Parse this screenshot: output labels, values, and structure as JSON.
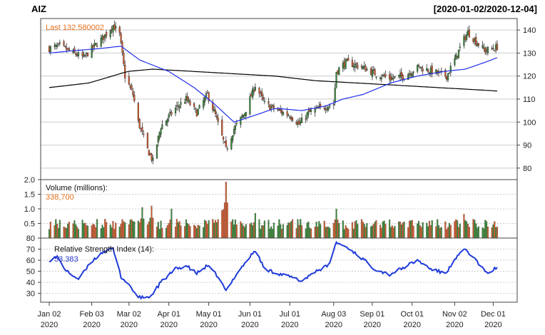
{
  "title": "AIZ",
  "date_range": "[2020-01-02/2020-12-04]",
  "colors": {
    "up_candle": "#3a8a3a",
    "down_candle": "#d35a2e",
    "wick": "#333333",
    "sma_fast": "#1f2eea",
    "sma_slow": "#000000",
    "rsi": "#1f3ad9",
    "last_label": "#e8701a",
    "grid": "#cccccc"
  },
  "chart_data": [
    {
      "type": "candlestick",
      "panel": "price",
      "annotation": "Last 132.580002",
      "ylim": [
        75,
        145
      ],
      "yticks": [
        80,
        90,
        100,
        110,
        120,
        130,
        140
      ],
      "grid": true,
      "close_keypoints": [
        {
          "x": "2020-01-02",
          "y": 132
        },
        {
          "x": "2020-01-10",
          "y": 133
        },
        {
          "x": "2020-01-20",
          "y": 130
        },
        {
          "x": "2020-01-28",
          "y": 128
        },
        {
          "x": "2020-02-05",
          "y": 133
        },
        {
          "x": "2020-02-12",
          "y": 137
        },
        {
          "x": "2020-02-19",
          "y": 142
        },
        {
          "x": "2020-02-24",
          "y": 138
        },
        {
          "x": "2020-02-28",
          "y": 120
        },
        {
          "x": "2020-03-05",
          "y": 112
        },
        {
          "x": "2020-03-09",
          "y": 100
        },
        {
          "x": "2020-03-16",
          "y": 88
        },
        {
          "x": "2020-03-20",
          "y": 83
        },
        {
          "x": "2020-03-26",
          "y": 98
        },
        {
          "x": "2020-04-06",
          "y": 106
        },
        {
          "x": "2020-04-14",
          "y": 110
        },
        {
          "x": "2020-04-22",
          "y": 104
        },
        {
          "x": "2020-04-30",
          "y": 112
        },
        {
          "x": "2020-05-06",
          "y": 103
        },
        {
          "x": "2020-05-14",
          "y": 88
        },
        {
          "x": "2020-05-20",
          "y": 97
        },
        {
          "x": "2020-05-28",
          "y": 104
        },
        {
          "x": "2020-06-05",
          "y": 116
        },
        {
          "x": "2020-06-12",
          "y": 108
        },
        {
          "x": "2020-06-22",
          "y": 105
        },
        {
          "x": "2020-07-01",
          "y": 103
        },
        {
          "x": "2020-07-08",
          "y": 99
        },
        {
          "x": "2020-07-15",
          "y": 104
        },
        {
          "x": "2020-07-24",
          "y": 106
        },
        {
          "x": "2020-08-03",
          "y": 108
        },
        {
          "x": "2020-08-05",
          "y": 122
        },
        {
          "x": "2020-08-12",
          "y": 126
        },
        {
          "x": "2020-08-24",
          "y": 124
        },
        {
          "x": "2020-09-03",
          "y": 121
        },
        {
          "x": "2020-09-15",
          "y": 119
        },
        {
          "x": "2020-09-25",
          "y": 120
        },
        {
          "x": "2020-10-06",
          "y": 124
        },
        {
          "x": "2020-10-16",
          "y": 122
        },
        {
          "x": "2020-10-27",
          "y": 120
        },
        {
          "x": "2020-11-02",
          "y": 127
        },
        {
          "x": "2020-11-09",
          "y": 136
        },
        {
          "x": "2020-11-12",
          "y": 139
        },
        {
          "x": "2020-11-18",
          "y": 135
        },
        {
          "x": "2020-11-25",
          "y": 131
        },
        {
          "x": "2020-12-04",
          "y": 132.58
        }
      ],
      "sma_fast_keypoints": [
        {
          "x": "2020-01-02",
          "y": 130
        },
        {
          "x": "2020-01-20",
          "y": 131
        },
        {
          "x": "2020-02-10",
          "y": 132
        },
        {
          "x": "2020-02-25",
          "y": 133
        },
        {
          "x": "2020-03-10",
          "y": 127
        },
        {
          "x": "2020-04-01",
          "y": 122
        },
        {
          "x": "2020-04-20",
          "y": 115
        },
        {
          "x": "2020-05-05",
          "y": 108
        },
        {
          "x": "2020-05-20",
          "y": 100
        },
        {
          "x": "2020-06-05",
          "y": 103
        },
        {
          "x": "2020-06-20",
          "y": 106
        },
        {
          "x": "2020-07-10",
          "y": 105
        },
        {
          "x": "2020-07-28",
          "y": 107
        },
        {
          "x": "2020-08-10",
          "y": 110
        },
        {
          "x": "2020-08-25",
          "y": 112
        },
        {
          "x": "2020-09-15",
          "y": 117
        },
        {
          "x": "2020-10-05",
          "y": 120
        },
        {
          "x": "2020-10-25",
          "y": 122
        },
        {
          "x": "2020-11-10",
          "y": 123
        },
        {
          "x": "2020-11-25",
          "y": 126
        },
        {
          "x": "2020-12-04",
          "y": 128
        }
      ],
      "sma_slow_keypoints": [
        {
          "x": "2020-01-02",
          "y": 115
        },
        {
          "x": "2020-02-01",
          "y": 117
        },
        {
          "x": "2020-03-01",
          "y": 122
        },
        {
          "x": "2020-03-20",
          "y": 123
        },
        {
          "x": "2020-04-20",
          "y": 122
        },
        {
          "x": "2020-05-20",
          "y": 121
        },
        {
          "x": "2020-06-20",
          "y": 120
        },
        {
          "x": "2020-07-20",
          "y": 118
        },
        {
          "x": "2020-08-20",
          "y": 117
        },
        {
          "x": "2020-09-20",
          "y": 116
        },
        {
          "x": "2020-10-20",
          "y": 115
        },
        {
          "x": "2020-11-20",
          "y": 114
        },
        {
          "x": "2020-12-04",
          "y": 113.5
        }
      ]
    },
    {
      "type": "bar",
      "panel": "volume",
      "label": "Volume (millions):",
      "last_value": "338,700",
      "ylim": [
        0,
        2.0
      ],
      "yticks": [
        0.5,
        1.0,
        1.5,
        2.0
      ],
      "ytick_labels": [
        "0.5",
        "1.0",
        "1.5",
        "2.0"
      ],
      "baseline": 0.3,
      "spikes": [
        {
          "x": "2020-03-12",
          "y": 1.05
        },
        {
          "x": "2020-03-19",
          "y": 1.1
        },
        {
          "x": "2020-04-03",
          "y": 1.0
        },
        {
          "x": "2020-05-11",
          "y": 0.95
        },
        {
          "x": "2020-05-14",
          "y": 1.92
        },
        {
          "x": "2020-06-05",
          "y": 0.85
        },
        {
          "x": "2020-08-05",
          "y": 1.0
        },
        {
          "x": "2020-11-09",
          "y": 0.82
        }
      ]
    },
    {
      "type": "line",
      "panel": "rsi",
      "label": "Relative Strength Index (14):",
      "last_value": "53.383",
      "ylim": [
        22,
        80
      ],
      "yticks": [
        30,
        40,
        50,
        60,
        70,
        80
      ],
      "keypoints": [
        {
          "x": "2020-01-02",
          "y": 60
        },
        {
          "x": "2020-01-08",
          "y": 63
        },
        {
          "x": "2020-01-15",
          "y": 50
        },
        {
          "x": "2020-01-24",
          "y": 43
        },
        {
          "x": "2020-02-04",
          "y": 60
        },
        {
          "x": "2020-02-12",
          "y": 68
        },
        {
          "x": "2020-02-19",
          "y": 70
        },
        {
          "x": "2020-02-25",
          "y": 45
        },
        {
          "x": "2020-03-02",
          "y": 38
        },
        {
          "x": "2020-03-09",
          "y": 26
        },
        {
          "x": "2020-03-18",
          "y": 27
        },
        {
          "x": "2020-03-26",
          "y": 40
        },
        {
          "x": "2020-04-06",
          "y": 52
        },
        {
          "x": "2020-04-14",
          "y": 55
        },
        {
          "x": "2020-04-22",
          "y": 48
        },
        {
          "x": "2020-04-30",
          "y": 55
        },
        {
          "x": "2020-05-08",
          "y": 45
        },
        {
          "x": "2020-05-14",
          "y": 32
        },
        {
          "x": "2020-05-22",
          "y": 48
        },
        {
          "x": "2020-06-05",
          "y": 69
        },
        {
          "x": "2020-06-12",
          "y": 52
        },
        {
          "x": "2020-06-22",
          "y": 48
        },
        {
          "x": "2020-07-01",
          "y": 45
        },
        {
          "x": "2020-07-10",
          "y": 41
        },
        {
          "x": "2020-07-20",
          "y": 50
        },
        {
          "x": "2020-07-30",
          "y": 55
        },
        {
          "x": "2020-08-05",
          "y": 76
        },
        {
          "x": "2020-08-14",
          "y": 71
        },
        {
          "x": "2020-08-24",
          "y": 62
        },
        {
          "x": "2020-09-03",
          "y": 52
        },
        {
          "x": "2020-09-14",
          "y": 47
        },
        {
          "x": "2020-09-24",
          "y": 53
        },
        {
          "x": "2020-10-05",
          "y": 60
        },
        {
          "x": "2020-10-15",
          "y": 52
        },
        {
          "x": "2020-10-26",
          "y": 48
        },
        {
          "x": "2020-11-04",
          "y": 63
        },
        {
          "x": "2020-11-10",
          "y": 70
        },
        {
          "x": "2020-11-18",
          "y": 60
        },
        {
          "x": "2020-11-26",
          "y": 48
        },
        {
          "x": "2020-12-04",
          "y": 53.383
        }
      ]
    }
  ],
  "x_axis": {
    "ticks": [
      {
        "date": "2020-01-02",
        "label": "Jan 02",
        "year": "2020"
      },
      {
        "date": "2020-02-03",
        "label": "Feb 03",
        "year": "2020"
      },
      {
        "date": "2020-03-02",
        "label": "Mar 02",
        "year": "2020"
      },
      {
        "date": "2020-04-01",
        "label": "Apr 01",
        "year": "2020"
      },
      {
        "date": "2020-05-01",
        "label": "May 01",
        "year": "2020"
      },
      {
        "date": "2020-06-01",
        "label": "Jun 01",
        "year": "2020"
      },
      {
        "date": "2020-07-01",
        "label": "Jul 01",
        "year": "2020"
      },
      {
        "date": "2020-08-03",
        "label": "Aug 03",
        "year": "2020"
      },
      {
        "date": "2020-09-01",
        "label": "Sep 01",
        "year": "2020"
      },
      {
        "date": "2020-10-01",
        "label": "Oct 01",
        "year": "2020"
      },
      {
        "date": "2020-11-02",
        "label": "Nov 02",
        "year": "2020"
      },
      {
        "date": "2020-12-01",
        "label": "Dec 01",
        "year": "2020"
      }
    ]
  }
}
